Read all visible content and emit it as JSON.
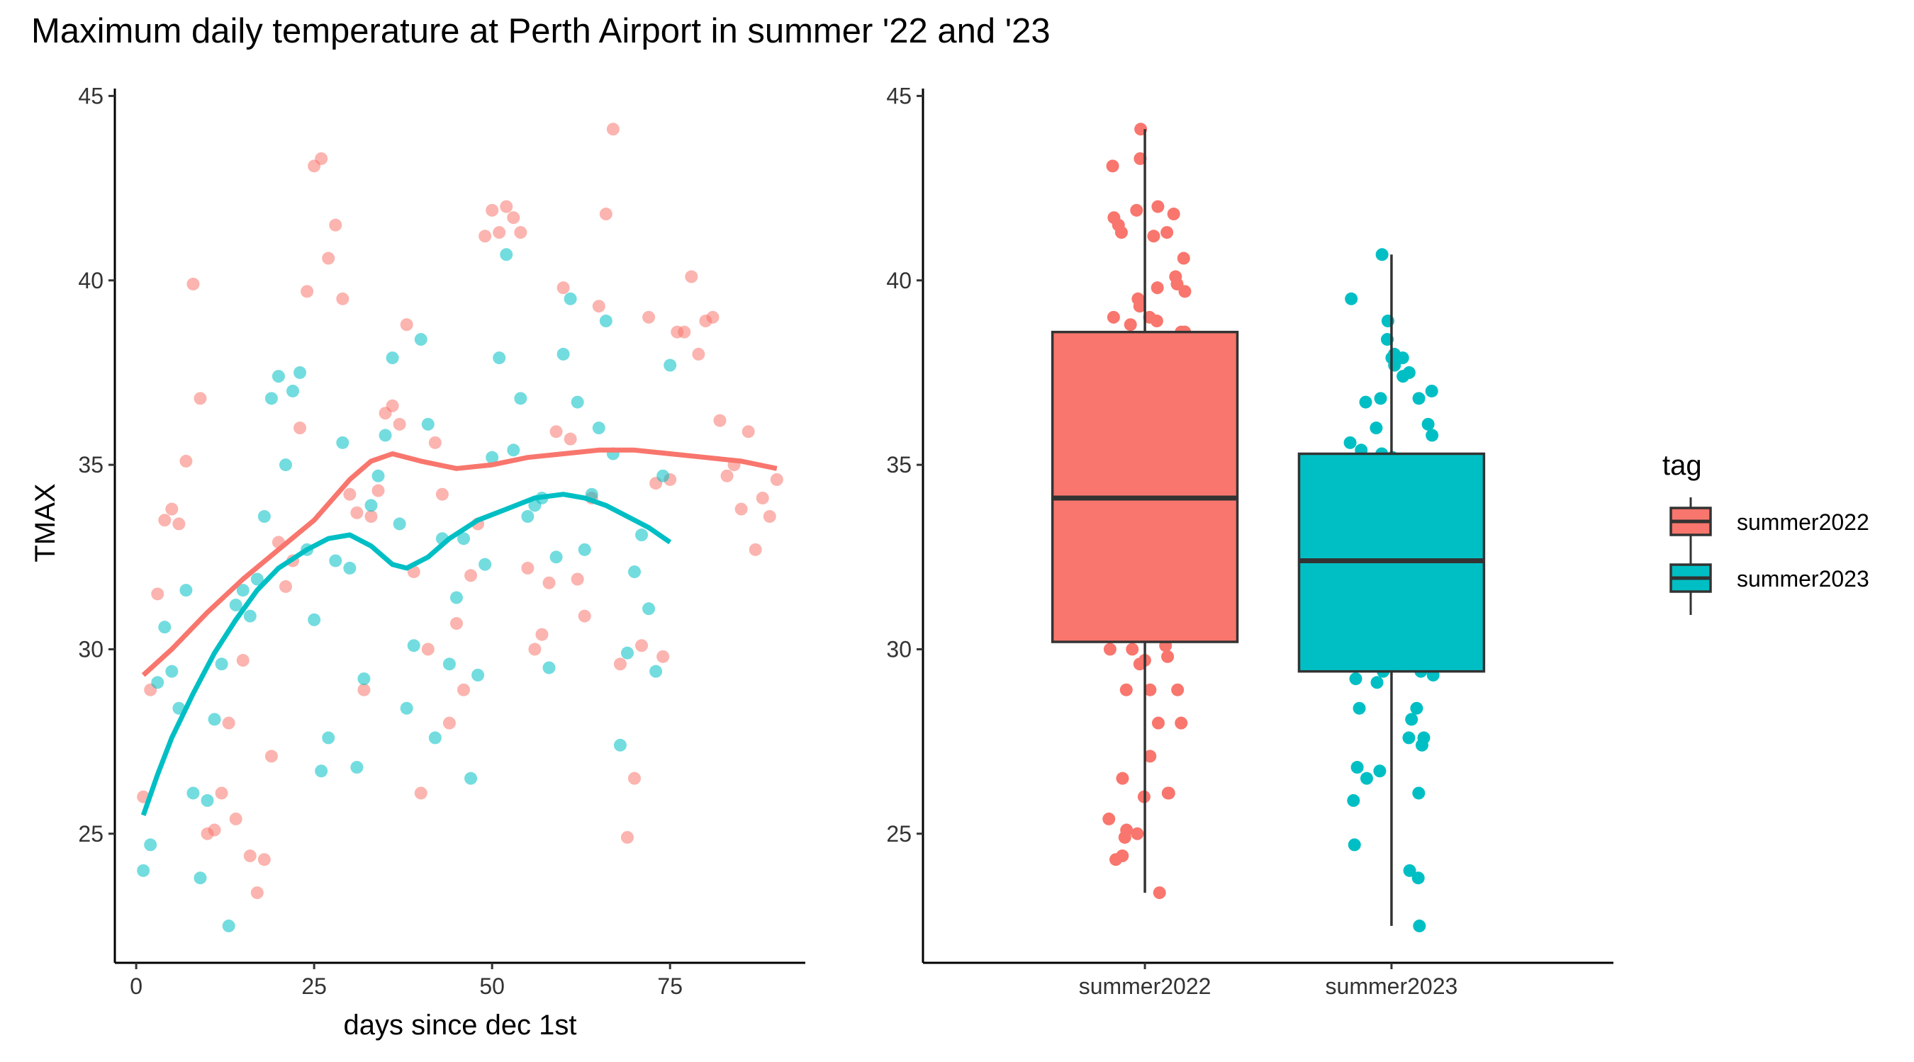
{
  "title": "Maximum daily temperature at Perth Airport in summer '22 and '23",
  "colors": {
    "summer2022": "#F8766D",
    "summer2023": "#00BFC4",
    "axis": "#000000",
    "box_line": "#333333"
  },
  "legend": {
    "title": "tag",
    "placement": "right",
    "items": [
      {
        "label": "summer2022",
        "color": "#F8766D"
      },
      {
        "label": "summer2023",
        "color": "#00BFC4"
      }
    ]
  },
  "chart_data": [
    {
      "type": "scatter",
      "xlabel": "days since dec 1st",
      "ylabel": "TMAX",
      "xlim": [
        -3,
        94
      ],
      "ylim": [
        21.5,
        45.2
      ],
      "xticks": [
        0,
        25,
        50,
        75
      ],
      "yticks": [
        25,
        30,
        35,
        40,
        45
      ],
      "grid": false,
      "series": [
        {
          "name": "summer2022",
          "color": "#F8766D",
          "points": [
            [
              1,
              26.0
            ],
            [
              2,
              28.9
            ],
            [
              3,
              31.5
            ],
            [
              4,
              33.5
            ],
            [
              5,
              33.8
            ],
            [
              6,
              33.4
            ],
            [
              7,
              35.1
            ],
            [
              8,
              39.9
            ],
            [
              9,
              36.8
            ],
            [
              10,
              25.0
            ],
            [
              11,
              25.1
            ],
            [
              12,
              26.1
            ],
            [
              13,
              28.0
            ],
            [
              14,
              25.4
            ],
            [
              15,
              29.7
            ],
            [
              16,
              24.4
            ],
            [
              17,
              23.4
            ],
            [
              18,
              24.3
            ],
            [
              19,
              27.1
            ],
            [
              20,
              32.9
            ],
            [
              21,
              31.7
            ],
            [
              22,
              32.4
            ],
            [
              23,
              36.0
            ],
            [
              24,
              39.7
            ],
            [
              25,
              43.1
            ],
            [
              26,
              43.3
            ],
            [
              27,
              40.6
            ],
            [
              28,
              41.5
            ],
            [
              29,
              39.5
            ],
            [
              30,
              34.2
            ],
            [
              31,
              33.7
            ],
            [
              32,
              28.9
            ],
            [
              33,
              33.6
            ],
            [
              34,
              34.3
            ],
            [
              35,
              36.4
            ],
            [
              36,
              36.6
            ],
            [
              37,
              36.1
            ],
            [
              38,
              38.8
            ],
            [
              39,
              32.1
            ],
            [
              40,
              26.1
            ],
            [
              41,
              30.0
            ],
            [
              42,
              35.6
            ],
            [
              43,
              34.2
            ],
            [
              44,
              28.0
            ],
            [
              45,
              30.7
            ],
            [
              46,
              28.9
            ],
            [
              47,
              32.0
            ],
            [
              48,
              33.4
            ],
            [
              49,
              41.2
            ],
            [
              50,
              41.9
            ],
            [
              51,
              41.3
            ],
            [
              52,
              42.0
            ],
            [
              53,
              41.7
            ],
            [
              54,
              41.3
            ],
            [
              55,
              32.2
            ],
            [
              56,
              30.0
            ],
            [
              57,
              30.4
            ],
            [
              58,
              31.8
            ],
            [
              59,
              35.9
            ],
            [
              60,
              39.8
            ],
            [
              61,
              35.7
            ],
            [
              62,
              31.9
            ],
            [
              63,
              30.9
            ],
            [
              64,
              34.1
            ],
            [
              65,
              39.3
            ],
            [
              66,
              41.8
            ],
            [
              67,
              44.1
            ],
            [
              68,
              29.6
            ],
            [
              69,
              24.9
            ],
            [
              70,
              26.5
            ],
            [
              71,
              30.1
            ],
            [
              72,
              39.0
            ],
            [
              73,
              34.5
            ],
            [
              74,
              29.8
            ],
            [
              75,
              34.6
            ],
            [
              76,
              38.6
            ],
            [
              77,
              38.6
            ],
            [
              78,
              40.1
            ],
            [
              79,
              38.0
            ],
            [
              80,
              38.9
            ],
            [
              81,
              39.0
            ],
            [
              82,
              36.2
            ],
            [
              83,
              34.7
            ],
            [
              84,
              35.0
            ],
            [
              85,
              33.8
            ],
            [
              86,
              35.9
            ],
            [
              87,
              32.7
            ],
            [
              88,
              34.1
            ],
            [
              89,
              33.6
            ],
            [
              90,
              34.6
            ]
          ]
        },
        {
          "name": "summer2023",
          "color": "#00BFC4",
          "points": [
            [
              1,
              24.0
            ],
            [
              2,
              24.7
            ],
            [
              3,
              29.1
            ],
            [
              4,
              30.6
            ],
            [
              5,
              29.4
            ],
            [
              6,
              28.4
            ],
            [
              7,
              31.6
            ],
            [
              8,
              26.1
            ],
            [
              9,
              23.8
            ],
            [
              10,
              25.9
            ],
            [
              11,
              28.1
            ],
            [
              12,
              29.6
            ],
            [
              13,
              22.5
            ],
            [
              14,
              31.2
            ],
            [
              15,
              31.6
            ],
            [
              16,
              30.9
            ],
            [
              17,
              31.9
            ],
            [
              18,
              33.6
            ],
            [
              19,
              36.8
            ],
            [
              20,
              37.4
            ],
            [
              21,
              35.0
            ],
            [
              22,
              37.0
            ],
            [
              23,
              37.5
            ],
            [
              24,
              32.7
            ],
            [
              25,
              30.8
            ],
            [
              26,
              26.7
            ],
            [
              27,
              27.6
            ],
            [
              28,
              32.4
            ],
            [
              29,
              35.6
            ],
            [
              30,
              32.2
            ],
            [
              31,
              26.8
            ],
            [
              32,
              29.2
            ],
            [
              33,
              33.9
            ],
            [
              34,
              34.7
            ],
            [
              35,
              35.8
            ],
            [
              36,
              37.9
            ],
            [
              37,
              33.4
            ],
            [
              38,
              28.4
            ],
            [
              39,
              30.1
            ],
            [
              40,
              38.4
            ],
            [
              41,
              36.1
            ],
            [
              42,
              27.6
            ],
            [
              43,
              33.0
            ],
            [
              44,
              29.6
            ],
            [
              45,
              31.4
            ],
            [
              46,
              33.0
            ],
            [
              47,
              26.5
            ],
            [
              48,
              29.3
            ],
            [
              49,
              32.3
            ],
            [
              50,
              35.2
            ],
            [
              51,
              37.9
            ],
            [
              52,
              40.7
            ],
            [
              53,
              35.4
            ],
            [
              54,
              36.8
            ],
            [
              55,
              33.6
            ],
            [
              56,
              33.9
            ],
            [
              57,
              34.1
            ],
            [
              58,
              29.5
            ],
            [
              59,
              32.5
            ],
            [
              60,
              38.0
            ],
            [
              61,
              39.5
            ],
            [
              62,
              36.7
            ],
            [
              63,
              32.7
            ],
            [
              64,
              34.2
            ],
            [
              65,
              36.0
            ],
            [
              66,
              38.9
            ],
            [
              67,
              35.3
            ],
            [
              68,
              27.4
            ],
            [
              69,
              29.9
            ],
            [
              70,
              32.1
            ],
            [
              71,
              33.1
            ],
            [
              72,
              31.1
            ],
            [
              73,
              29.4
            ],
            [
              74,
              34.7
            ],
            [
              75,
              37.7
            ]
          ]
        }
      ],
      "smooth": [
        {
          "name": "summer2022",
          "color": "#F8766D",
          "points": [
            [
              1,
              29.3
            ],
            [
              5,
              30.0
            ],
            [
              10,
              31.0
            ],
            [
              15,
              31.9
            ],
            [
              20,
              32.7
            ],
            [
              25,
              33.5
            ],
            [
              30,
              34.6
            ],
            [
              33,
              35.1
            ],
            [
              36,
              35.3
            ],
            [
              40,
              35.1
            ],
            [
              45,
              34.9
            ],
            [
              50,
              35.0
            ],
            [
              55,
              35.2
            ],
            [
              60,
              35.3
            ],
            [
              65,
              35.4
            ],
            [
              70,
              35.4
            ],
            [
              75,
              35.3
            ],
            [
              80,
              35.2
            ],
            [
              85,
              35.1
            ],
            [
              90,
              34.9
            ]
          ]
        },
        {
          "name": "summer2023",
          "color": "#00BFC4",
          "points": [
            [
              1,
              25.5
            ],
            [
              3,
              26.6
            ],
            [
              5,
              27.6
            ],
            [
              8,
              28.8
            ],
            [
              11,
              29.9
            ],
            [
              14,
              30.8
            ],
            [
              17,
              31.6
            ],
            [
              20,
              32.2
            ],
            [
              24,
              32.7
            ],
            [
              27,
              33.0
            ],
            [
              30,
              33.1
            ],
            [
              33,
              32.8
            ],
            [
              36,
              32.3
            ],
            [
              38,
              32.2
            ],
            [
              41,
              32.5
            ],
            [
              44,
              33.0
            ],
            [
              48,
              33.5
            ],
            [
              52,
              33.8
            ],
            [
              56,
              34.1
            ],
            [
              60,
              34.2
            ],
            [
              63,
              34.1
            ],
            [
              66,
              33.9
            ],
            [
              69,
              33.6
            ],
            [
              72,
              33.3
            ],
            [
              75,
              32.9
            ]
          ]
        }
      ]
    },
    {
      "type": "box",
      "xlabel": "",
      "ylabel": "",
      "ylim": [
        21.5,
        45.2
      ],
      "yticks": [
        25,
        30,
        35,
        40,
        45
      ],
      "categories": [
        "summer2022",
        "summer2023"
      ],
      "grid": false,
      "boxes": [
        {
          "name": "summer2022",
          "color": "#F8766D",
          "min": 23.4,
          "q1": 30.2,
          "median": 34.1,
          "q3": 38.6,
          "max": 44.1
        },
        {
          "name": "summer2023",
          "color": "#00BFC4",
          "min": 22.5,
          "q1": 29.4,
          "median": 32.4,
          "q3": 35.3,
          "max": 40.7
        }
      ]
    }
  ]
}
